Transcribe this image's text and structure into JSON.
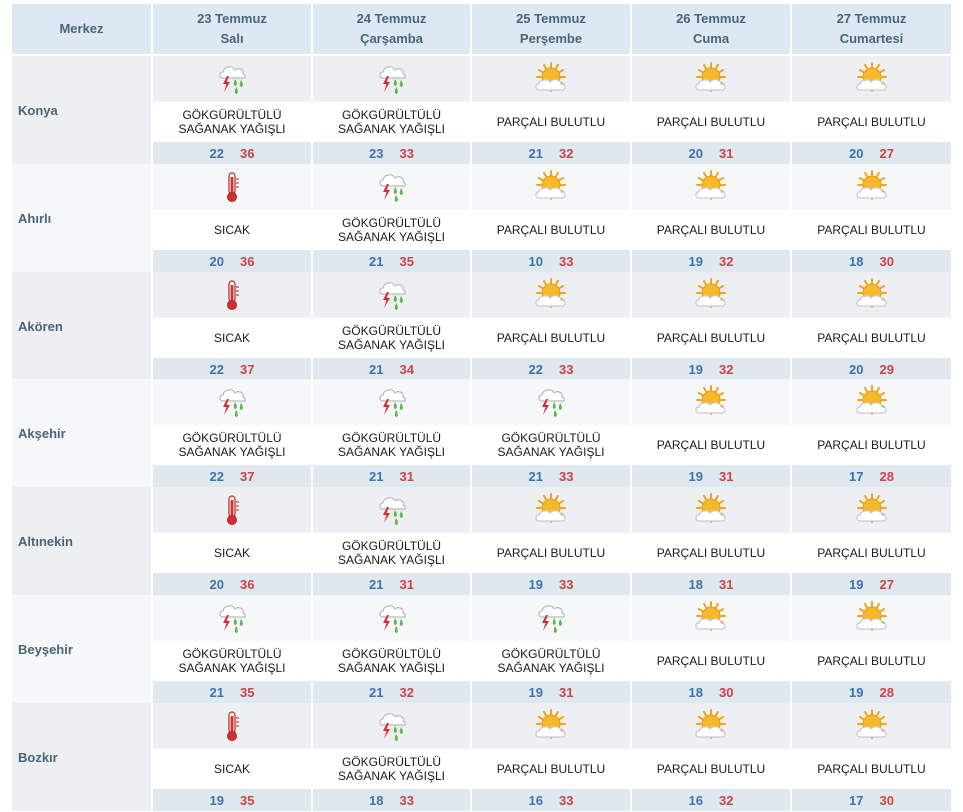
{
  "header": {
    "merkez": "Merkez",
    "days": [
      {
        "date": "23 Temmuz",
        "weekday": "Salı"
      },
      {
        "date": "24 Temmuz",
        "weekday": "Çarşamba"
      },
      {
        "date": "25 Temmuz",
        "weekday": "Perşembe"
      },
      {
        "date": "26 Temmuz",
        "weekday": "Cuma"
      },
      {
        "date": "27 Temmuz",
        "weekday": "Cumartesi"
      }
    ]
  },
  "conditions": {
    "storm": {
      "line1": "GÖKGÜRÜLTÜLÜ",
      "line2": "SAĞANAK YAĞIŞLI",
      "icon": "thunderstorm-rain-icon"
    },
    "hot": {
      "line1": "SICAK",
      "line2": "",
      "icon": "thermometer-hot-icon"
    },
    "partly": {
      "line1": "PARÇALI BULUTLU",
      "line2": "",
      "icon": "sun-behind-cloud-icon"
    }
  },
  "colors": {
    "header_bg": "#dde8f2",
    "band_light": "#f6f7f9",
    "band_dark": "#edeff2",
    "temp_band": "#dfe7ef",
    "min_temp": "#3f72ad",
    "max_temp": "#cc4545",
    "label": "#4a6579"
  },
  "cities": [
    {
      "name": "Konya",
      "days": [
        {
          "cond": "storm",
          "min": "22",
          "max": "36"
        },
        {
          "cond": "storm",
          "min": "23",
          "max": "33"
        },
        {
          "cond": "partly",
          "min": "21",
          "max": "32"
        },
        {
          "cond": "partly",
          "min": "20",
          "max": "31"
        },
        {
          "cond": "partly",
          "min": "20",
          "max": "27"
        }
      ]
    },
    {
      "name": "Ahırlı",
      "days": [
        {
          "cond": "hot",
          "min": "20",
          "max": "36"
        },
        {
          "cond": "storm",
          "min": "21",
          "max": "35"
        },
        {
          "cond": "partly",
          "min": "10",
          "max": "33"
        },
        {
          "cond": "partly",
          "min": "19",
          "max": "32"
        },
        {
          "cond": "partly",
          "min": "18",
          "max": "30"
        }
      ]
    },
    {
      "name": "Akören",
      "days": [
        {
          "cond": "hot",
          "min": "22",
          "max": "37"
        },
        {
          "cond": "storm",
          "min": "21",
          "max": "34"
        },
        {
          "cond": "partly",
          "min": "22",
          "max": "33"
        },
        {
          "cond": "partly",
          "min": "19",
          "max": "32"
        },
        {
          "cond": "partly",
          "min": "20",
          "max": "29"
        }
      ]
    },
    {
      "name": "Akşehir",
      "days": [
        {
          "cond": "storm",
          "min": "22",
          "max": "37"
        },
        {
          "cond": "storm",
          "min": "21",
          "max": "31"
        },
        {
          "cond": "storm",
          "min": "21",
          "max": "33"
        },
        {
          "cond": "partly",
          "min": "19",
          "max": "31"
        },
        {
          "cond": "partly",
          "min": "17",
          "max": "28"
        }
      ]
    },
    {
      "name": "Altınekin",
      "days": [
        {
          "cond": "hot",
          "min": "20",
          "max": "36"
        },
        {
          "cond": "storm",
          "min": "21",
          "max": "31"
        },
        {
          "cond": "partly",
          "min": "19",
          "max": "33"
        },
        {
          "cond": "partly",
          "min": "18",
          "max": "31"
        },
        {
          "cond": "partly",
          "min": "19",
          "max": "27"
        }
      ]
    },
    {
      "name": "Beyşehir",
      "days": [
        {
          "cond": "storm",
          "min": "21",
          "max": "35"
        },
        {
          "cond": "storm",
          "min": "21",
          "max": "32"
        },
        {
          "cond": "storm",
          "min": "19",
          "max": "31"
        },
        {
          "cond": "partly",
          "min": "18",
          "max": "30"
        },
        {
          "cond": "partly",
          "min": "19",
          "max": "28"
        }
      ]
    },
    {
      "name": "Bozkır",
      "days": [
        {
          "cond": "hot",
          "min": "19",
          "max": "35"
        },
        {
          "cond": "storm",
          "min": "18",
          "max": "33"
        },
        {
          "cond": "partly",
          "min": "16",
          "max": "33"
        },
        {
          "cond": "partly",
          "min": "16",
          "max": "32"
        },
        {
          "cond": "partly",
          "min": "17",
          "max": "30"
        }
      ]
    }
  ]
}
